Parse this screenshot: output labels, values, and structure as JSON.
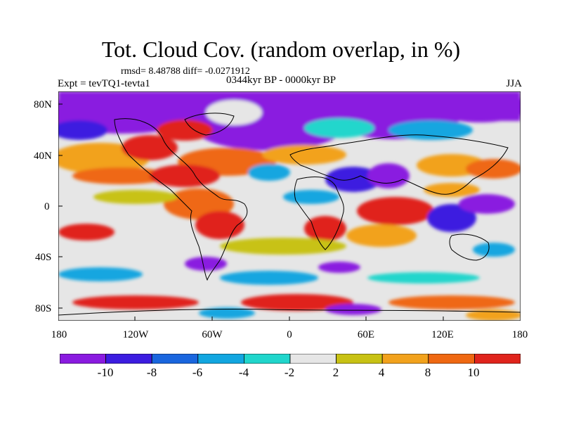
{
  "title": "Tot. Cloud Cov. (random overlap, in %)",
  "stats": "rmsd= 8.48788 diff= -0.0271912",
  "experiment": "Expt = tevTQ1-tevta1",
  "period": "0344kyr BP - 0000kyr BP",
  "season": "JJA",
  "map": {
    "lat_range": [
      -90,
      90
    ],
    "lon_range": [
      -180,
      180
    ],
    "y_tick_labels": [
      "80N",
      "40N",
      "0",
      "40S",
      "80S"
    ],
    "x_tick_labels": [
      "180",
      "120W",
      "60W",
      "0",
      "60E",
      "120E",
      "180"
    ],
    "missing_color": "#ffffff"
  },
  "colorbar": {
    "levels": [
      "-10",
      "-8",
      "-6",
      "-4",
      "-2",
      "2",
      "4",
      "8",
      "10"
    ],
    "colors": [
      "#8a1be0",
      "#3c1ce0",
      "#1a66de",
      "#12a6e0",
      "#20d6cc",
      "#e6e6e6",
      "#c8c214",
      "#f2a21c",
      "#ef6812",
      "#e0241c"
    ]
  }
}
